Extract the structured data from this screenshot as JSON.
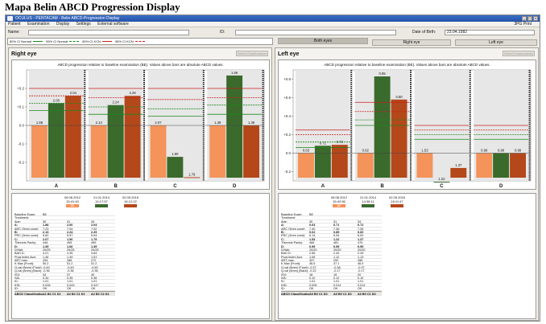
{
  "figure_title": "Mapa Belin ABCD Progression Display",
  "window": {
    "title": "OCULUS - PENTACAM - Belin ABCD-Progression Display",
    "menu": [
      "Patient",
      "Examination",
      "Display",
      "Settings",
      "External software"
    ],
    "menu_right": "3PG  Print"
  },
  "patient": {
    "name_label": "Name:",
    "id_label": "ID:",
    "dob_label": "Date of Birth:",
    "dob_value": "23.04.1982"
  },
  "legend": [
    {
      "label": "80% CI Normal",
      "color": "#1c8a1c",
      "dashed": false
    },
    {
      "label": "95% CI Normal",
      "color": "#1c8a1c",
      "dashed": true
    },
    {
      "label": "80% CI KCN",
      "color": "#c81e1e",
      "dashed": false
    },
    {
      "label": "95% CI KCN",
      "color": "#c81e1e",
      "dashed": true
    }
  ],
  "buttons": {
    "both_eyes": "Both eyes",
    "right_eye": "Right eye",
    "left_eye": "Left eye",
    "select": "Select Examinations"
  },
  "chart_caption": "ABCD progression relative to baseline examination (BE). Values above bars are absolute ABCD values.",
  "colors": {
    "baseline": "#f4935a",
    "exam2": "#3a6a2c",
    "exam3": "#b4481a",
    "normal": "#1c8a1c",
    "kcn": "#c81e1e"
  },
  "right": {
    "title": "Right eye",
    "exams": [
      {
        "date": "06.08.2012",
        "time": "15:41:43",
        "tag": "BE"
      },
      {
        "date": "21.01.2014",
        "time": "14:17:57",
        "tag": ""
      },
      {
        "date": "02.05.2016",
        "time": "16:12:22",
        "tag": ""
      }
    ],
    "rows": [
      {
        "label": "Baseline Exam:",
        "v": [
          "BE",
          "",
          ""
        ],
        "bold": false
      },
      {
        "label": "Treatment:",
        "v": [
          "",
          "",
          ""
        ],
        "bold": false
      },
      {
        "label": "Age:",
        "v": [
          "30",
          "31",
          "34"
        ],
        "bold": false
      },
      {
        "label": "A:",
        "v": [
          "1.88",
          "2.00",
          "2.04"
        ],
        "bold": true
      },
      {
        "label": "ARC (3mm zone):",
        "v": [
          "7.23",
          "7.04",
          "7.02"
        ],
        "bold": false
      },
      {
        "label": "B:",
        "v": [
          "2.13",
          "2.24",
          "2.29"
        ],
        "bold": true
      },
      {
        "label": "PRC (3mm zone):",
        "v": [
          "5.62",
          "5.57",
          "5.54"
        ],
        "bold": false
      },
      {
        "label": "C:",
        "v": [
          "2.07",
          "1.90",
          "1.79"
        ],
        "bold": true
      },
      {
        "label": "Thinnest Pachy:",
        "v": [
          "446",
          "455",
          "459"
        ],
        "bold": false
      },
      {
        "label": "D:",
        "v": [
          "1.39",
          "1.66",
          "1.39"
        ],
        "bold": true
      },
      {
        "label": "D/Vak:",
        "v": [
          "20/25",
          "20/25",
          "20/25"
        ],
        "bold": false
      },
      {
        "label": "BAD D:",
        "v": [
          "4.21",
          "4.35",
          "4.64"
        ],
        "bold": false
      },
      {
        "label": "Prog.Index Avg:",
        "v": [
          "1.46",
          "1.49",
          "1.51"
        ],
        "bold": false
      },
      {
        "label": "ART max:",
        "v": [
          "294",
          "286",
          "272"
        ],
        "bold": false
      },
      {
        "label": "K Max (Front):",
        "v": [
          "50.2",
          "51.2",
          "51.2"
        ],
        "bold": false
      },
      {
        "label": "Q-val (8mm) (Front):",
        "v": [
          "-0.49",
          "-0.49",
          "-0.50"
        ],
        "bold": false
      },
      {
        "label": "Q-val (8mm) (Back):",
        "v": [
          "-0.36",
          "-0.36",
          "-0.36"
        ],
        "bold": false
      },
      {
        "label": "ISV:",
        "v": [
          "34",
          "37",
          "40"
        ],
        "bold": false
      },
      {
        "label": "IVA:",
        "v": [
          "0.34",
          "0.35",
          "0.36"
        ],
        "bold": false
      },
      {
        "label": "KI:",
        "v": [
          "1.01",
          "1.01",
          "1.01"
        ],
        "bold": false
      },
      {
        "label": "IHD:",
        "v": [
          "0.028",
          "0.043",
          "0.047"
        ],
        "bold": false
      },
      {
        "label": "ID:",
        "v": [
          "OK",
          "OK",
          "OK"
        ],
        "bold": false
      }
    ],
    "classification_label": "ABCD Classification:",
    "classification": [
      "A1 B2 C1 D1",
      "A2 B2 C1 D1",
      "A2 B2 C2 D1"
    ]
  },
  "left": {
    "title": "Left eye",
    "exams": [
      {
        "date": "06.08.2012",
        "time": "15:42:56",
        "tag": "BE"
      },
      {
        "date": "21.01.2014",
        "time": "14:38:11",
        "tag": ""
      },
      {
        "date": "02.05.2016",
        "time": "16:11:47",
        "tag": ""
      }
    ],
    "rows": [
      {
        "label": "Baseline Exam:",
        "v": [
          "BE",
          "",
          ""
        ],
        "bold": false
      },
      {
        "label": "Treatment:",
        "v": [
          "",
          "",
          ""
        ],
        "bold": false
      },
      {
        "label": "Age:",
        "v": [
          "30",
          "31",
          "34"
        ],
        "bold": false
      },
      {
        "label": "A:",
        "v": [
          "0.63",
          "0.71",
          "0.72"
        ],
        "bold": true
      },
      {
        "label": "ARC (3mm zone):",
        "v": [
          "7.40",
          "7.36",
          "7.35"
        ],
        "bold": false
      },
      {
        "label": "B:",
        "v": [
          "0.02",
          "0.85",
          "0.60"
        ],
        "bold": true
      },
      {
        "label": "PRC (3mm zone):",
        "v": [
          "6.14",
          "5.94",
          "6.00"
        ],
        "bold": false
      },
      {
        "label": "C:",
        "v": [
          "1.53",
          "1.22",
          "1.37"
        ],
        "bold": true
      },
      {
        "label": "Thinnest Pachy:",
        "v": [
          "466",
          "481",
          "476"
        ],
        "bold": false
      },
      {
        "label": "D:",
        "v": [
          "0.99",
          "0.99",
          "0.99"
        ],
        "bold": true
      },
      {
        "label": "D/Vak:",
        "v": [
          "20/20",
          "20/20",
          "20/20"
        ],
        "bold": false
      },
      {
        "label": "BAD D:",
        "v": [
          "2.56",
          "2.40",
          "2.49"
        ],
        "bold": false
      },
      {
        "label": "Prog.Index Avg:",
        "v": [
          "1.06",
          "1.12",
          "1.13"
        ],
        "bold": false
      },
      {
        "label": "ART max:",
        "v": [
          "337",
          "292",
          "286"
        ],
        "bold": false
      },
      {
        "label": "K Max (Front):",
        "v": [
          "46.5",
          "47.1",
          "46.9"
        ],
        "bold": false
      },
      {
        "label": "Q-val (8mm) (Front):",
        "v": [
          "-0.37",
          "-0.38",
          "-0.37"
        ],
        "bold": false
      },
      {
        "label": "Q-val (8mm) (Back):",
        "v": [
          "-0.22",
          "-0.17",
          "-0.17"
        ],
        "bold": false
      },
      {
        "label": "ISV:",
        "v": [
          "18",
          "15",
          "20"
        ],
        "bold": false
      },
      {
        "label": "IVA:",
        "v": [
          "0.10",
          "0.12",
          "0.10"
        ],
        "bold": false
      },
      {
        "label": "KI:",
        "v": [
          "1.01",
          "1.01",
          "1.01"
        ],
        "bold": false
      },
      {
        "label": "IHD:",
        "v": [
          "0.005",
          "0.014",
          "0.014"
        ],
        "bold": false
      },
      {
        "label": "ID:",
        "v": [
          "OK",
          "OK",
          "OK"
        ],
        "bold": false
      }
    ],
    "classification_label": "ABCD Classification:",
    "classification": [
      "A0 B0 C1 D0",
      "A0 B0 C1 D0",
      "A0 B0 C1 D0"
    ]
  },
  "chart_data": [
    {
      "type": "bar",
      "title": "Right eye",
      "categories": [
        "A",
        "B",
        "C",
        "D"
      ],
      "ylim": [
        -0.3,
        0.3
      ],
      "yticks": [
        0.2,
        0.1,
        0.0,
        -0.1,
        -0.2
      ],
      "series": [
        {
          "name": "06.08.2012",
          "values": [
            0.0,
            0.0,
            0.0,
            0.0
          ],
          "labels": [
            1.88,
            2.13,
            2.07,
            1.39
          ]
        },
        {
          "name": "21.01.2014",
          "values": [
            0.12,
            0.11,
            -0.17,
            0.27
          ],
          "labels": [
            2.0,
            2.24,
            1.9,
            1.66
          ]
        },
        {
          "name": "02.05.2016",
          "values": [
            0.16,
            0.16,
            -0.28,
            0.0
          ],
          "labels": [
            2.04,
            2.29,
            1.79,
            1.39
          ]
        }
      ],
      "ci_lines": [
        {
          "category": "A",
          "normal80": 0.08,
          "normal95": 0.12,
          "kcn80": 0.2,
          "kcn95": 0.16
        },
        {
          "category": "B",
          "normal80": 0.06,
          "normal95": 0.1,
          "kcn80": 0.2,
          "kcn95": 0.15
        },
        {
          "category": "C",
          "normal80": 0.05,
          "normal95": 0.09,
          "kcn80": 0.2,
          "kcn95": 0.14
        },
        {
          "category": "D",
          "normal80": 0.06,
          "normal95": 0.11,
          "kcn80": 0.2,
          "kcn95": 0.15
        }
      ]
    },
    {
      "type": "bar",
      "title": "Left eye",
      "categories": [
        "A",
        "B",
        "C",
        "D"
      ],
      "ylim": [
        -0.3,
        0.9
      ],
      "yticks": [
        0.8,
        0.6,
        0.4,
        0.2,
        0.0,
        -0.2
      ],
      "series": [
        {
          "name": "06.08.2012",
          "values": [
            0.0,
            0.0,
            0.0,
            0.0
          ],
          "labels": [
            0.63,
            0.02,
            1.53,
            0.99
          ]
        },
        {
          "name": "21.01.2014",
          "values": [
            0.08,
            0.83,
            -0.31,
            0.0
          ],
          "labels": [
            0.71,
            0.85,
            1.22,
            0.99
          ]
        },
        {
          "name": "02.05.2016",
          "values": [
            0.09,
            0.58,
            -0.16,
            0.0
          ],
          "labels": [
            0.72,
            0.6,
            1.37,
            0.99
          ]
        }
      ],
      "ci_lines": [
        {
          "category": "A",
          "normal80": 0.06,
          "normal95": 0.12,
          "kcn80": 0.25,
          "kcn95": 0.2
        },
        {
          "category": "B",
          "normal80": 0.3,
          "normal95": 0.36,
          "kcn80": 0.55,
          "kcn95": 0.45
        },
        {
          "category": "C",
          "normal80": 0.15,
          "normal95": 0.2,
          "kcn80": 0.3,
          "kcn95": 0.25
        },
        {
          "category": "D",
          "normal80": 0.15,
          "normal95": 0.2,
          "kcn80": 0.3,
          "kcn95": 0.25
        }
      ]
    }
  ]
}
